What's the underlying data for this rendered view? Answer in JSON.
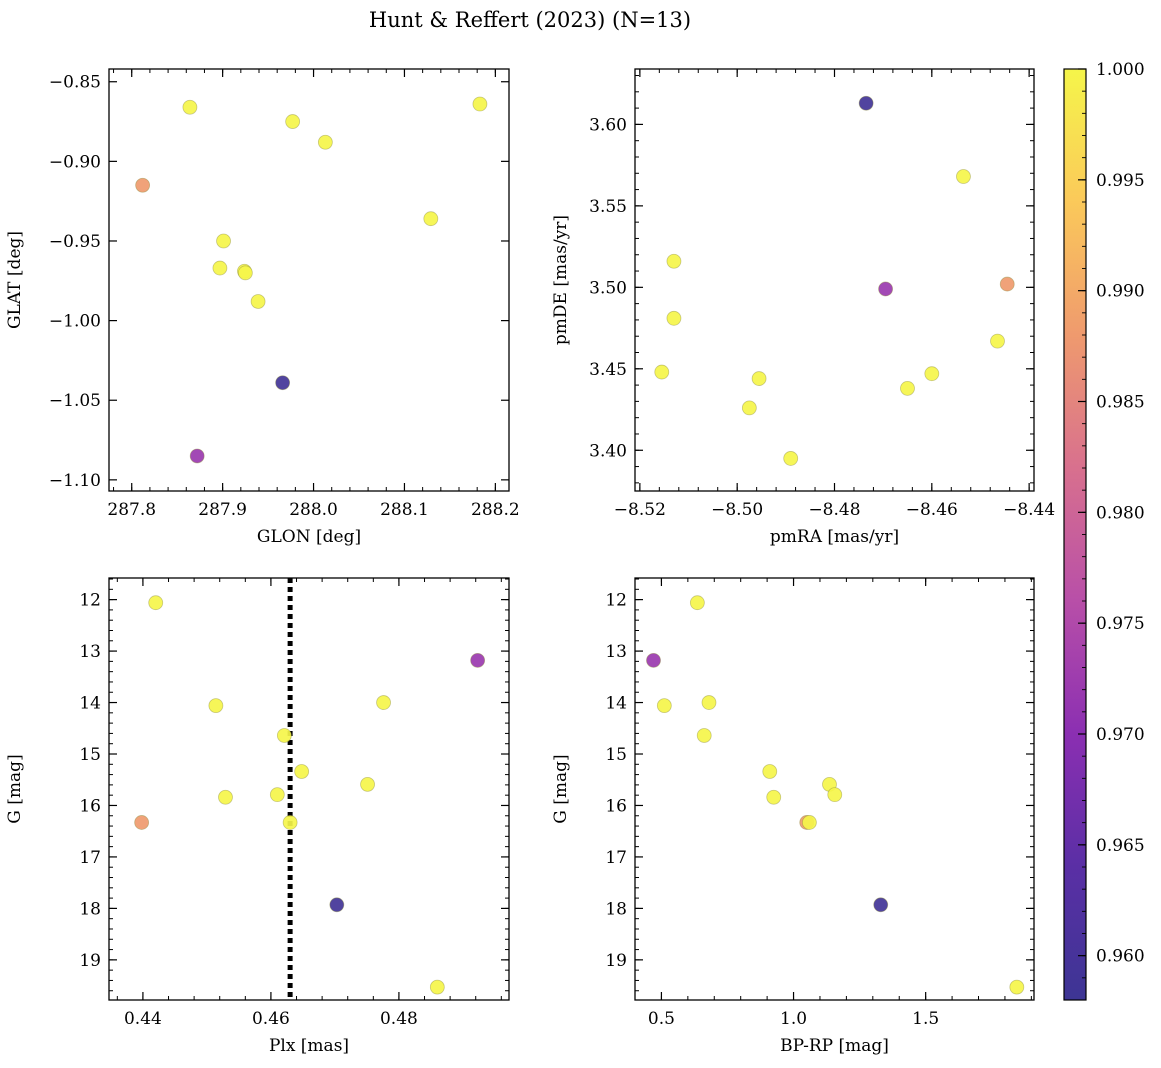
{
  "figure": {
    "title": "Hunt & Reffert (2023) (N=13)"
  },
  "colorbar": {
    "min": 0.958,
    "max": 1.0,
    "ticks": [
      0.96,
      0.965,
      0.97,
      0.975,
      0.98,
      0.985,
      0.99,
      0.995,
      1.0
    ],
    "tick_labels": [
      "0.960",
      "0.965",
      "0.970",
      "0.975",
      "0.980",
      "0.985",
      "0.990",
      "0.995",
      "1.000"
    ],
    "colormap": "plasma",
    "colormap_stops": [
      "#3d3594",
      "#5a2fa5",
      "#8b2fb2",
      "#b84fa8",
      "#d8708e",
      "#ef9a6e",
      "#fbc95a",
      "#f5f54a"
    ]
  },
  "chart_data": [
    {
      "type": "scatter",
      "title": "",
      "xlabel": "GLON [deg]",
      "ylabel": "GLAT [deg]",
      "xlim": [
        287.775,
        288.215
      ],
      "ylim": [
        -1.107,
        -0.842
      ],
      "x_ticks": [
        287.8,
        287.9,
        288.0,
        288.1,
        288.2
      ],
      "x_tick_labels": [
        "287.8",
        "287.9",
        "288.0",
        "288.1",
        "288.2"
      ],
      "y_ticks": [
        -0.85,
        -0.9,
        -0.95,
        -1.0,
        -1.05,
        -1.1
      ],
      "y_tick_labels": [
        "−0.85",
        "−0.90",
        "−0.95",
        "−1.00",
        "−1.05",
        "−1.10"
      ],
      "points": [
        {
          "x": 287.864,
          "y": -0.866,
          "c": 1.0
        },
        {
          "x": 287.977,
          "y": -0.875,
          "c": 1.0
        },
        {
          "x": 288.013,
          "y": -0.888,
          "c": 1.0
        },
        {
          "x": 288.183,
          "y": -0.864,
          "c": 1.0
        },
        {
          "x": 287.812,
          "y": -0.915,
          "c": 0.988
        },
        {
          "x": 287.901,
          "y": -0.95,
          "c": 1.0
        },
        {
          "x": 287.897,
          "y": -0.967,
          "c": 1.0
        },
        {
          "x": 287.924,
          "y": -0.969,
          "c": 1.0
        },
        {
          "x": 287.925,
          "y": -0.97,
          "c": 1.0
        },
        {
          "x": 287.939,
          "y": -0.988,
          "c": 1.0
        },
        {
          "x": 288.129,
          "y": -0.936,
          "c": 1.0
        },
        {
          "x": 287.966,
          "y": -1.039,
          "c": 0.959
        },
        {
          "x": 287.872,
          "y": -1.085,
          "c": 0.972
        }
      ]
    },
    {
      "type": "scatter",
      "title": "",
      "xlabel": "pmRA [mas/yr]",
      "ylabel": "pmDE [mas/yr]",
      "xlim": [
        -8.521,
        -8.439
      ],
      "ylim": [
        3.375,
        3.634
      ],
      "x_ticks": [
        -8.52,
        -8.5,
        -8.48,
        -8.46,
        -8.44
      ],
      "x_tick_labels": [
        "−8.52",
        "−8.50",
        "−8.48",
        "−8.46",
        "−8.44"
      ],
      "y_ticks": [
        3.4,
        3.45,
        3.5,
        3.55,
        3.6
      ],
      "y_tick_labels": [
        "3.40",
        "3.45",
        "3.50",
        "3.55",
        "3.60"
      ],
      "points": [
        {
          "x": -8.4735,
          "y": 3.613,
          "c": 0.959
        },
        {
          "x": -8.4535,
          "y": 3.568,
          "c": 1.0
        },
        {
          "x": -8.513,
          "y": 3.516,
          "c": 1.0
        },
        {
          "x": -8.4695,
          "y": 3.499,
          "c": 0.972
        },
        {
          "x": -8.4445,
          "y": 3.502,
          "c": 0.988
        },
        {
          "x": -8.513,
          "y": 3.481,
          "c": 1.0
        },
        {
          "x": -8.4465,
          "y": 3.467,
          "c": 1.0
        },
        {
          "x": -8.5155,
          "y": 3.448,
          "c": 1.0
        },
        {
          "x": -8.46,
          "y": 3.447,
          "c": 1.0
        },
        {
          "x": -8.4955,
          "y": 3.444,
          "c": 1.0
        },
        {
          "x": -8.465,
          "y": 3.438,
          "c": 1.0
        },
        {
          "x": -8.4975,
          "y": 3.426,
          "c": 1.0
        },
        {
          "x": -8.489,
          "y": 3.395,
          "c": 1.0
        }
      ]
    },
    {
      "type": "scatter",
      "title": "",
      "xlabel": "Plx [mas]",
      "ylabel": "G [mag]",
      "xlim": [
        0.4347,
        0.4972
      ],
      "ylim": [
        19.78,
        11.58
      ],
      "x_ticks": [
        0.44,
        0.46,
        0.48
      ],
      "x_tick_labels": [
        "0.44",
        "0.46",
        "0.48"
      ],
      "y_ticks": [
        12,
        13,
        14,
        15,
        16,
        17,
        18,
        19
      ],
      "y_tick_labels": [
        "12",
        "13",
        "14",
        "15",
        "16",
        "17",
        "18",
        "19"
      ],
      "vline": {
        "x": 0.463,
        "style": "dotted"
      },
      "points": [
        {
          "x": 0.442,
          "y": 12.06,
          "c": 1.0
        },
        {
          "x": 0.4923,
          "y": 13.18,
          "c": 0.972
        },
        {
          "x": 0.4514,
          "y": 14.06,
          "c": 1.0
        },
        {
          "x": 0.4776,
          "y": 14.0,
          "c": 1.0
        },
        {
          "x": 0.4621,
          "y": 14.64,
          "c": 1.0
        },
        {
          "x": 0.4648,
          "y": 15.34,
          "c": 1.0
        },
        {
          "x": 0.4751,
          "y": 15.59,
          "c": 1.0
        },
        {
          "x": 0.4529,
          "y": 15.84,
          "c": 1.0
        },
        {
          "x": 0.461,
          "y": 15.79,
          "c": 1.0
        },
        {
          "x": 0.463,
          "y": 16.33,
          "c": 1.0
        },
        {
          "x": 0.4398,
          "y": 16.33,
          "c": 0.988
        },
        {
          "x": 0.4703,
          "y": 17.93,
          "c": 0.959
        },
        {
          "x": 0.486,
          "y": 19.53,
          "c": 1.0
        }
      ]
    },
    {
      "type": "scatter",
      "title": "",
      "xlabel": "BP-RP [mag]",
      "ylabel": "G [mag]",
      "xlim": [
        0.4,
        1.91
      ],
      "ylim": [
        19.78,
        11.58
      ],
      "x_ticks": [
        0.5,
        1.0,
        1.5
      ],
      "x_tick_labels": [
        "0.5",
        "1.0",
        "1.5"
      ],
      "y_ticks": [
        12,
        13,
        14,
        15,
        16,
        17,
        18,
        19
      ],
      "y_tick_labels": [
        "12",
        "13",
        "14",
        "15",
        "16",
        "17",
        "18",
        "19"
      ],
      "points": [
        {
          "x": 0.636,
          "y": 12.06,
          "c": 1.0
        },
        {
          "x": 0.47,
          "y": 13.18,
          "c": 0.972
        },
        {
          "x": 0.511,
          "y": 14.06,
          "c": 1.0
        },
        {
          "x": 0.68,
          "y": 14.0,
          "c": 1.0
        },
        {
          "x": 0.662,
          "y": 14.64,
          "c": 1.0
        },
        {
          "x": 0.91,
          "y": 15.34,
          "c": 1.0
        },
        {
          "x": 1.136,
          "y": 15.59,
          "c": 1.0
        },
        {
          "x": 0.925,
          "y": 15.84,
          "c": 1.0
        },
        {
          "x": 1.156,
          "y": 15.79,
          "c": 1.0
        },
        {
          "x": 1.05,
          "y": 16.33,
          "c": 0.988
        },
        {
          "x": 1.06,
          "y": 16.33,
          "c": 1.0
        },
        {
          "x": 1.33,
          "y": 17.93,
          "c": 0.959
        },
        {
          "x": 1.845,
          "y": 19.53,
          "c": 1.0
        }
      ]
    }
  ]
}
